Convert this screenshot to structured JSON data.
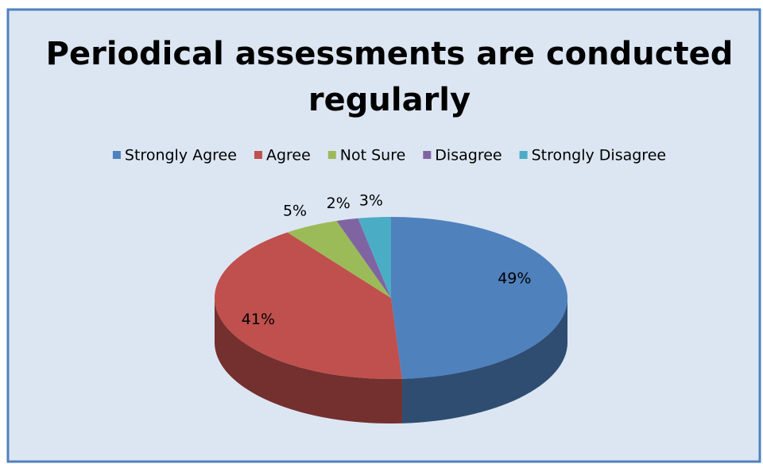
{
  "chart_data": {
    "type": "pie",
    "title": [
      "Periodical assessments are conducted",
      "regularly"
    ],
    "categories": [
      "Strongly Agree",
      "Agree",
      "Not Sure",
      "Disagree",
      "Strongly Disagree"
    ],
    "values": [
      49,
      41,
      5,
      2,
      3
    ],
    "value_labels": [
      "49%",
      "41%",
      "5%",
      "2%",
      "3%"
    ],
    "colors": [
      "#4f81bd",
      "#c0504d",
      "#9bbb59",
      "#8064a2",
      "#4bacc6"
    ],
    "legend": "top"
  }
}
